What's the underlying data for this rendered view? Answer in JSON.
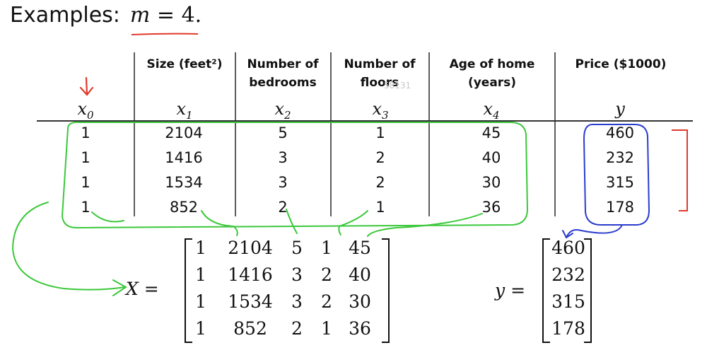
{
  "heading": {
    "label": "Examples:",
    "m_var": "m",
    "m_eq": "= 4."
  },
  "table": {
    "columns": [
      {
        "header": "",
        "var": "x",
        "sub": "0"
      },
      {
        "header": "Size (feet²)",
        "var": "x",
        "sub": "1"
      },
      {
        "header": "Number of bedrooms",
        "var": "x",
        "sub": "2"
      },
      {
        "header": "Number of floors",
        "var": "x",
        "sub": "3"
      },
      {
        "header": "Age of home (years)",
        "var": "x",
        "sub": "4"
      },
      {
        "header": "Price ($1000)",
        "var": "y",
        "sub": ""
      }
    ],
    "rows": [
      [
        "1",
        "2104",
        "5",
        "1",
        "45",
        "460"
      ],
      [
        "1",
        "1416",
        "3",
        "2",
        "40",
        "232"
      ],
      [
        "1",
        "1534",
        "3",
        "2",
        "30",
        "315"
      ],
      [
        "1",
        "852",
        "2",
        "1",
        "36",
        "178"
      ]
    ]
  },
  "matrix_X": {
    "label": "X =",
    "rows": [
      [
        "1",
        "2104",
        "5",
        "1",
        "45"
      ],
      [
        "1",
        "1416",
        "3",
        "2",
        "40"
      ],
      [
        "1",
        "1534",
        "3",
        "2",
        "30"
      ],
      [
        "1",
        "852",
        "2",
        "1",
        "36"
      ]
    ]
  },
  "vector_y": {
    "label": "y =",
    "values": [
      "460",
      "232",
      "315",
      "178"
    ]
  },
  "watermark": "58131",
  "colors": {
    "green_annotation": "#3cc83c",
    "blue_annotation": "#2a3ccc",
    "red_annotation": "#e03a2a"
  }
}
